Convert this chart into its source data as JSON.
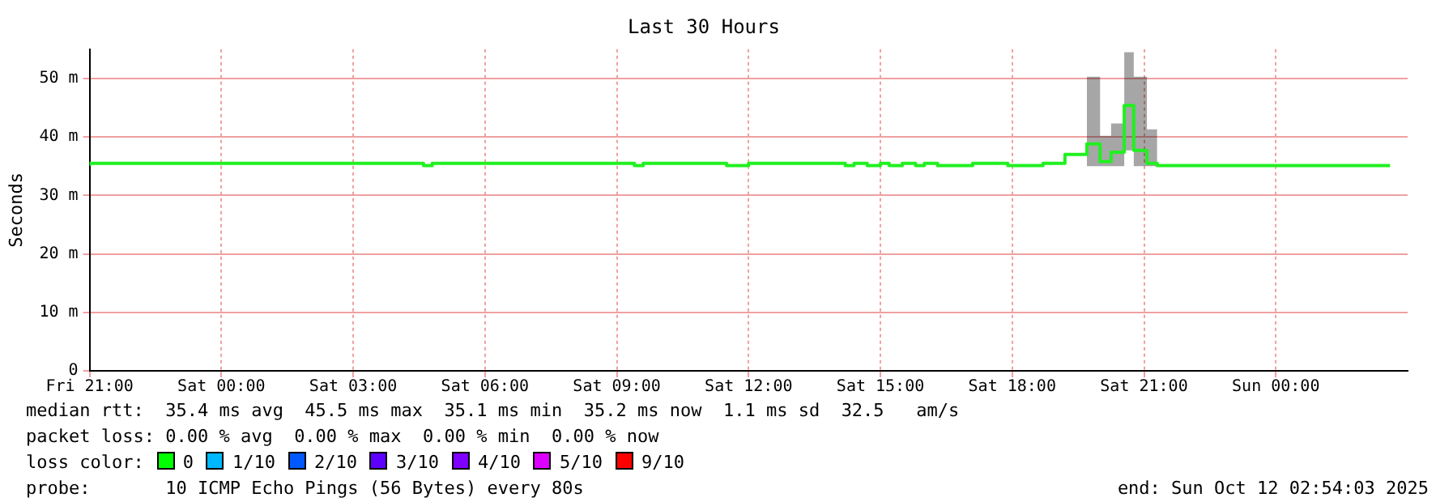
{
  "chart_data": {
    "type": "step",
    "title": "Last 30 Hours",
    "ylabel": "Seconds",
    "x": [
      "2025-10-10T21:00",
      "2025-10-11T04:36",
      "2025-10-11T04:48",
      "2025-10-11T09:24",
      "2025-10-11T09:36",
      "2025-10-11T11:30",
      "2025-10-11T12:00",
      "2025-10-11T14:12",
      "2025-10-11T14:24",
      "2025-10-11T14:42",
      "2025-10-11T15:00",
      "2025-10-11T15:12",
      "2025-10-11T15:30",
      "2025-10-11T15:48",
      "2025-10-11T16:00",
      "2025-10-11T16:18",
      "2025-10-11T17:06",
      "2025-10-11T17:54",
      "2025-10-11T18:42",
      "2025-10-11T19:12",
      "2025-10-11T19:42",
      "2025-10-11T20:00",
      "2025-10-11T20:15",
      "2025-10-11T20:33",
      "2025-10-11T20:46",
      "2025-10-11T21:04",
      "2025-10-11T21:18",
      "2025-10-11T21:36",
      "2025-10-12T02:36"
    ],
    "series": [
      {
        "color": "#20f020",
        "values": [
          35.1,
          35.5,
          35.1,
          35.5,
          35.1,
          35.5,
          35.1,
          35.5,
          35.1,
          35.5,
          35.1,
          35.5,
          35.1,
          35.5,
          35.1,
          35.5,
          35.1,
          35.5,
          35.1,
          35.5,
          37.0,
          38.8,
          35.8,
          37.4,
          45.4,
          37.7,
          35.5,
          35.1,
          35.1
        ],
        "lower": [
          null,
          null,
          null,
          null,
          null,
          null,
          null,
          null,
          null,
          null,
          null,
          null,
          null,
          null,
          null,
          null,
          null,
          null,
          null,
          null,
          35,
          35,
          35,
          35,
          37.7,
          35,
          35,
          null,
          null
        ],
        "upper": [
          null,
          null,
          null,
          null,
          null,
          null,
          null,
          null,
          null,
          null,
          null,
          null,
          null,
          null,
          null,
          null,
          null,
          null,
          null,
          null,
          41.5,
          50.3,
          40.2,
          42.3,
          54.5,
          50.3,
          41.3,
          null,
          null
        ]
      }
    ],
    "xlim": [
      "2025-10-10T21:00",
      "2025-10-12T03:00"
    ],
    "xticks": [
      {
        "value": "2025-10-10T21:00",
        "label": "Fri 21:00"
      },
      {
        "value": "2025-10-11T00:00",
        "label": "Sat 00:00"
      },
      {
        "value": "2025-10-11T03:00",
        "label": "Sat 03:00"
      },
      {
        "value": "2025-10-11T06:00",
        "label": "Sat 06:00"
      },
      {
        "value": "2025-10-11T09:00",
        "label": "Sat 09:00"
      },
      {
        "value": "2025-10-11T12:00",
        "label": "Sat 12:00"
      },
      {
        "value": "2025-10-11T15:00",
        "label": "Sat 15:00"
      },
      {
        "value": "2025-10-11T18:00",
        "label": "Sat 18:00"
      },
      {
        "value": "2025-10-11T21:00",
        "label": "Sat 21:00"
      },
      {
        "value": "2025-10-12T00:00",
        "label": "Sun 00:00"
      }
    ],
    "ylim": [
      0,
      55
    ],
    "yticks": [
      0,
      {
        "value": 10,
        "label": "10 m"
      },
      {
        "value": 20,
        "label": "20 m"
      },
      {
        "value": 30,
        "label": "30 m"
      },
      {
        "value": 40,
        "label": "40 m"
      },
      {
        "value": 50,
        "label": "50 m"
      }
    ],
    "grid": true,
    "marker": "none",
    "line_style": "solid",
    "annotations": [
      "median rtt:  35.4 ms avg  45.5 ms max  35.1 ms min  35.2 ms now  1.1 ms sd  32.5   am/s",
      "packet loss: 0.00 % avg  0.00 % max  0.00 % min  0.00 % now",
      "loss color:  0  1/10  2/10  3/10  4/10  5/10  9/10",
      "probe:       10 ICMP Echo Pings (56 Bytes) every 80s",
      "end: Sun Oct 12 02:54:03 2025"
    ]
  }
}
